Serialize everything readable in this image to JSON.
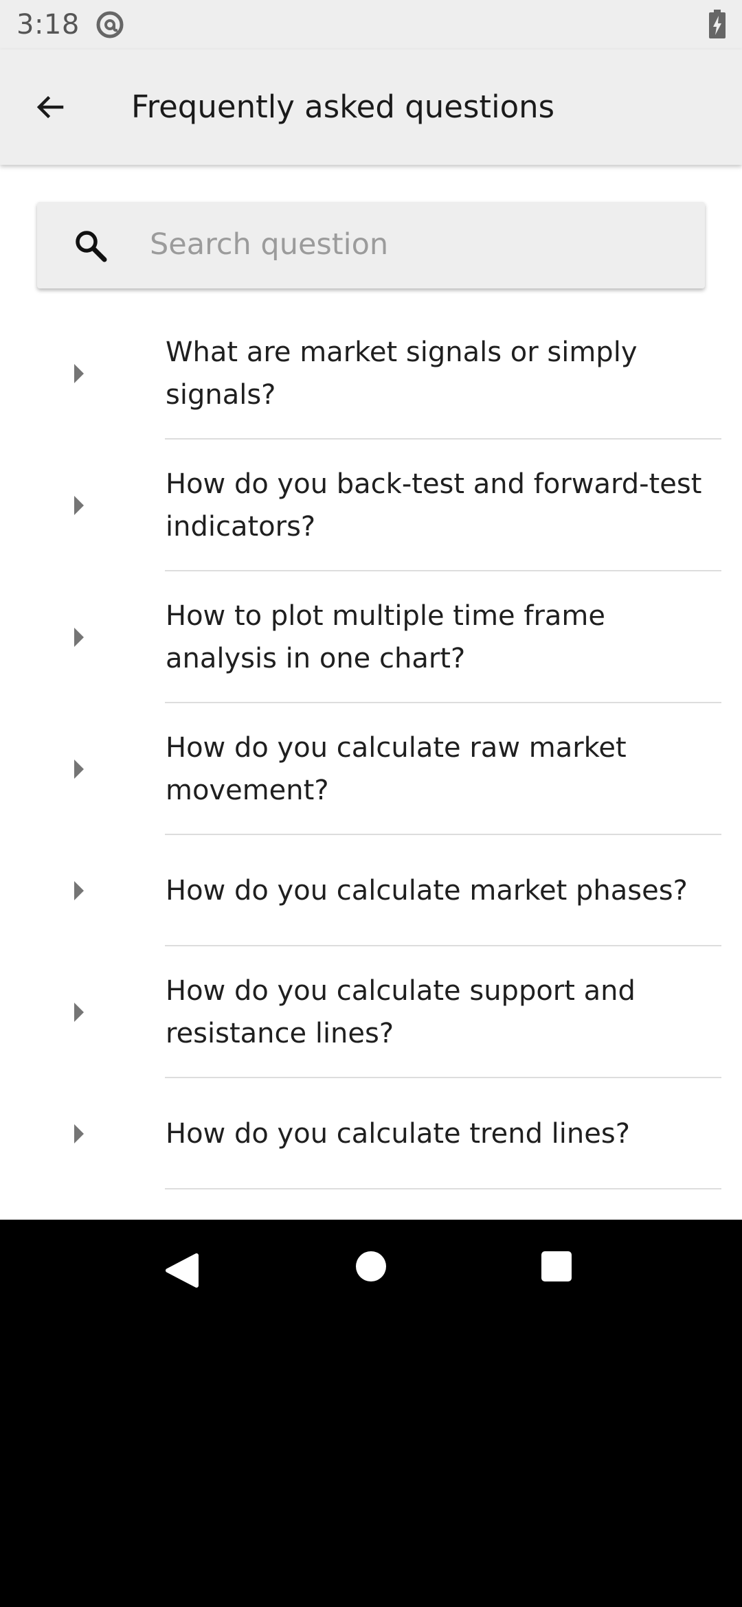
{
  "status_bar": {
    "time": "3:18",
    "sync_icon": "sync-at-icon",
    "battery_icon": "battery-charging-icon"
  },
  "header": {
    "title": "Frequently asked questions",
    "back_icon": "arrow-left-icon"
  },
  "search": {
    "placeholder": "Search question",
    "value": "",
    "icon": "search-icon"
  },
  "faq": {
    "items": [
      {
        "question": "What are market signals or simply signals?"
      },
      {
        "question": "How do you back-test and forward-test indicators?"
      },
      {
        "question": "How to plot multiple time frame analysis in one chart?"
      },
      {
        "question": "How do you calculate raw market movement?"
      },
      {
        "question": "How do you calculate market phases?"
      },
      {
        "question": "How do you calculate support and resistance lines?"
      },
      {
        "question": "How do you calculate trend lines?"
      }
    ]
  },
  "nav": {
    "back_icon": "nav-back-icon",
    "home_icon": "nav-home-icon",
    "recents_icon": "nav-recents-icon"
  },
  "colors": {
    "bar_background": "#eeeeee",
    "text_primary": "#1f1f1f",
    "placeholder": "#9b9b9b",
    "divider": "#dddddd",
    "chevron": "#757575"
  }
}
